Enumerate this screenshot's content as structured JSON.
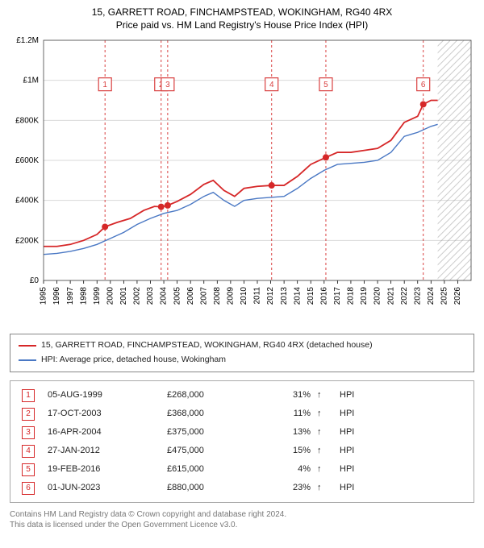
{
  "title": "15, GARRETT ROAD, FINCHAMPSTEAD, WOKINGHAM, RG40 4RX",
  "subtitle": "Price paid vs. HM Land Registry's House Price Index (HPI)",
  "chart": {
    "type": "line",
    "background_color": "#ffffff",
    "plot_border_color": "#444444",
    "grid_color": "#d9d9d9",
    "vline_color": "#d94040",
    "vline_dash": "3 3",
    "hatch_color": "#999999",
    "x": {
      "min": 1995,
      "max": 2027,
      "ticks": [
        1995,
        1996,
        1997,
        1998,
        1999,
        2000,
        2001,
        2002,
        2003,
        2004,
        2005,
        2006,
        2007,
        2008,
        2009,
        2010,
        2011,
        2012,
        2013,
        2014,
        2015,
        2016,
        2017,
        2018,
        2019,
        2020,
        2021,
        2022,
        2023,
        2024,
        2025,
        2026
      ],
      "tick_fontsize": 10,
      "tick_color": "#000"
    },
    "y": {
      "min": 0,
      "max": 1200000,
      "ticks": [
        0,
        200000,
        400000,
        600000,
        800000,
        1000000,
        1200000
      ],
      "tick_labels": [
        "£0",
        "£200K",
        "£400K",
        "£600K",
        "£800K",
        "£1M",
        "£1.2M"
      ],
      "tick_fontsize": 10,
      "tick_color": "#000"
    },
    "series": [
      {
        "name": "property",
        "color": "#d62728",
        "width": 1.8,
        "label": "15, GARRETT ROAD, FINCHAMPSTEAD, WOKINGHAM, RG40 4RX (detached house)",
        "points": [
          [
            1995.0,
            170000
          ],
          [
            1996.0,
            170000
          ],
          [
            1997.0,
            180000
          ],
          [
            1998.0,
            200000
          ],
          [
            1999.0,
            230000
          ],
          [
            1999.6,
            268000
          ],
          [
            2000.5,
            290000
          ],
          [
            2001.5,
            310000
          ],
          [
            2002.5,
            350000
          ],
          [
            2003.3,
            370000
          ],
          [
            2003.8,
            368000
          ],
          [
            2004.3,
            375000
          ],
          [
            2005.0,
            395000
          ],
          [
            2006.0,
            430000
          ],
          [
            2007.0,
            480000
          ],
          [
            2007.7,
            500000
          ],
          [
            2008.5,
            450000
          ],
          [
            2009.3,
            420000
          ],
          [
            2010.0,
            460000
          ],
          [
            2011.0,
            470000
          ],
          [
            2012.07,
            475000
          ],
          [
            2013.0,
            475000
          ],
          [
            2014.0,
            520000
          ],
          [
            2015.0,
            580000
          ],
          [
            2016.13,
            615000
          ],
          [
            2017.0,
            640000
          ],
          [
            2018.0,
            640000
          ],
          [
            2019.0,
            650000
          ],
          [
            2020.0,
            660000
          ],
          [
            2021.0,
            700000
          ],
          [
            2022.0,
            790000
          ],
          [
            2023.0,
            820000
          ],
          [
            2023.42,
            880000
          ],
          [
            2024.0,
            900000
          ],
          [
            2024.5,
            900000
          ]
        ]
      },
      {
        "name": "hpi",
        "color": "#4a78c4",
        "width": 1.4,
        "label": "HPI: Average price, detached house, Wokingham",
        "points": [
          [
            1995.0,
            130000
          ],
          [
            1996.0,
            135000
          ],
          [
            1997.0,
            145000
          ],
          [
            1998.0,
            160000
          ],
          [
            1999.0,
            180000
          ],
          [
            2000.0,
            210000
          ],
          [
            2001.0,
            240000
          ],
          [
            2002.0,
            280000
          ],
          [
            2003.0,
            310000
          ],
          [
            2004.0,
            335000
          ],
          [
            2005.0,
            350000
          ],
          [
            2006.0,
            380000
          ],
          [
            2007.0,
            420000
          ],
          [
            2007.7,
            440000
          ],
          [
            2008.5,
            400000
          ],
          [
            2009.3,
            370000
          ],
          [
            2010.0,
            400000
          ],
          [
            2011.0,
            410000
          ],
          [
            2012.0,
            415000
          ],
          [
            2013.0,
            420000
          ],
          [
            2014.0,
            460000
          ],
          [
            2015.0,
            510000
          ],
          [
            2016.0,
            550000
          ],
          [
            2017.0,
            580000
          ],
          [
            2018.0,
            585000
          ],
          [
            2019.0,
            590000
          ],
          [
            2020.0,
            600000
          ],
          [
            2021.0,
            640000
          ],
          [
            2022.0,
            720000
          ],
          [
            2023.0,
            740000
          ],
          [
            2024.0,
            770000
          ],
          [
            2024.5,
            780000
          ]
        ]
      }
    ],
    "sale_markers": [
      {
        "idx": "1",
        "x": 1999.6,
        "y": 268000,
        "label_y": 980000
      },
      {
        "idx": "2",
        "x": 2003.8,
        "y": 368000,
        "label_y": 980000
      },
      {
        "idx": "3",
        "x": 2004.29,
        "y": 375000,
        "label_y": 980000
      },
      {
        "idx": "4",
        "x": 2012.07,
        "y": 475000,
        "label_y": 980000
      },
      {
        "idx": "5",
        "x": 2016.13,
        "y": 615000,
        "label_y": 980000
      },
      {
        "idx": "6",
        "x": 2023.42,
        "y": 880000,
        "label_y": 980000
      }
    ],
    "data_end_x": 2024.5
  },
  "legend": {
    "border_color": "#888888",
    "items": [
      {
        "color": "#d62728",
        "label": "15, GARRETT ROAD, FINCHAMPSTEAD, WOKINGHAM, RG40 4RX (detached house)"
      },
      {
        "color": "#4a78c4",
        "label": "HPI: Average price, detached house, Wokingham"
      }
    ]
  },
  "transactions": {
    "arrow": "↑",
    "hpi_label": "HPI",
    "rows": [
      {
        "idx": "1",
        "date": "05-AUG-1999",
        "price": "£268,000",
        "pct": "31%"
      },
      {
        "idx": "2",
        "date": "17-OCT-2003",
        "price": "£368,000",
        "pct": "11%"
      },
      {
        "idx": "3",
        "date": "16-APR-2004",
        "price": "£375,000",
        "pct": "13%"
      },
      {
        "idx": "4",
        "date": "27-JAN-2012",
        "price": "£475,000",
        "pct": "15%"
      },
      {
        "idx": "5",
        "date": "19-FEB-2016",
        "price": "£615,000",
        "pct": "4%"
      },
      {
        "idx": "6",
        "date": "01-JUN-2023",
        "price": "£880,000",
        "pct": "23%"
      }
    ],
    "marker_color": "#d62728"
  },
  "footer": {
    "line1": "Contains HM Land Registry data © Crown copyright and database right 2024.",
    "line2": "This data is licensed under the Open Government Licence v3.0."
  }
}
